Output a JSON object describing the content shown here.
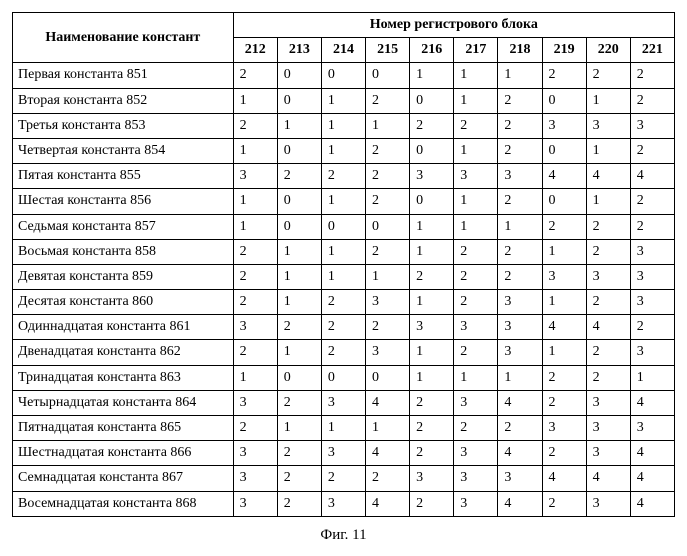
{
  "header": {
    "name_col": "Наименование констант",
    "block_header": "Номер регистрового блока",
    "blocks": [
      "212",
      "213",
      "214",
      "215",
      "216",
      "217",
      "218",
      "219",
      "220",
      "221"
    ]
  },
  "rows": [
    {
      "name": "Первая константа 851",
      "v": [
        "2",
        "0",
        "0",
        "0",
        "1",
        "1",
        "1",
        "2",
        "2",
        "2"
      ]
    },
    {
      "name": "Вторая константа 852",
      "v": [
        "1",
        "0",
        "1",
        "2",
        "0",
        "1",
        "2",
        "0",
        "1",
        "2"
      ]
    },
    {
      "name": "Третья константа 853",
      "v": [
        "2",
        "1",
        "1",
        "1",
        "2",
        "2",
        "2",
        "3",
        "3",
        "3"
      ]
    },
    {
      "name": "Четвертая константа 854",
      "v": [
        "1",
        "0",
        "1",
        "2",
        "0",
        "1",
        "2",
        "0",
        "1",
        "2"
      ]
    },
    {
      "name": "Пятая константа 855",
      "v": [
        "3",
        "2",
        "2",
        "2",
        "3",
        "3",
        "3",
        "4",
        "4",
        "4"
      ]
    },
    {
      "name": "Шестая константа 856",
      "v": [
        "1",
        "0",
        "1",
        "2",
        "0",
        "1",
        "2",
        "0",
        "1",
        "2"
      ]
    },
    {
      "name": "Седьмая константа 857",
      "v": [
        "1",
        "0",
        "0",
        "0",
        "1",
        "1",
        "1",
        "2",
        "2",
        "2"
      ]
    },
    {
      "name": "Восьмая константа 858",
      "v": [
        "2",
        "1",
        "1",
        "2",
        "1",
        "2",
        "2",
        "1",
        "2",
        "3"
      ]
    },
    {
      "name": "Девятая константа 859",
      "v": [
        "2",
        "1",
        "1",
        "1",
        "2",
        "2",
        "2",
        "3",
        "3",
        "3"
      ]
    },
    {
      "name": "Десятая константа 860",
      "v": [
        "2",
        "1",
        "2",
        "3",
        "1",
        "2",
        "3",
        "1",
        "2",
        "3"
      ]
    },
    {
      "name": "Одиннадцатая константа 861",
      "v": [
        "3",
        "2",
        "2",
        "2",
        "3",
        "3",
        "3",
        "4",
        "4",
        "2"
      ]
    },
    {
      "name": "Двенадцатая константа 862",
      "v": [
        "2",
        "1",
        "2",
        "3",
        "1",
        "2",
        "3",
        "1",
        "2",
        "3"
      ]
    },
    {
      "name": "Тринадцатая константа 863",
      "v": [
        "1",
        "0",
        "0",
        "0",
        "1",
        "1",
        "1",
        "2",
        "2",
        "1"
      ]
    },
    {
      "name": "Четырнадцатая константа 864",
      "v": [
        "3",
        "2",
        "3",
        "4",
        "2",
        "3",
        "4",
        "2",
        "3",
        "4"
      ]
    },
    {
      "name": "Пятнадцатая константа 865",
      "v": [
        "2",
        "1",
        "1",
        "1",
        "2",
        "2",
        "2",
        "3",
        "3",
        "3"
      ]
    },
    {
      "name": "Шестнадцатая константа 866",
      "v": [
        "3",
        "2",
        "3",
        "4",
        "2",
        "3",
        "4",
        "2",
        "3",
        "4"
      ]
    },
    {
      "name": "Семнадцатая константа 867",
      "v": [
        "3",
        "2",
        "2",
        "2",
        "3",
        "3",
        "3",
        "4",
        "4",
        "4"
      ]
    },
    {
      "name": "Восемнадцатая константа 868",
      "v": [
        "3",
        "2",
        "3",
        "4",
        "2",
        "3",
        "4",
        "2",
        "3",
        "4"
      ]
    }
  ],
  "caption": "Фиг. 11",
  "style": {
    "type": "table",
    "background_color": "#ffffff",
    "border_color": "#000000",
    "font_family": "Times New Roman",
    "body_fontsize": 14,
    "caption_fontsize": 15,
    "name_col_width": 220,
    "num_col_width": 44,
    "num_cols": 10
  }
}
